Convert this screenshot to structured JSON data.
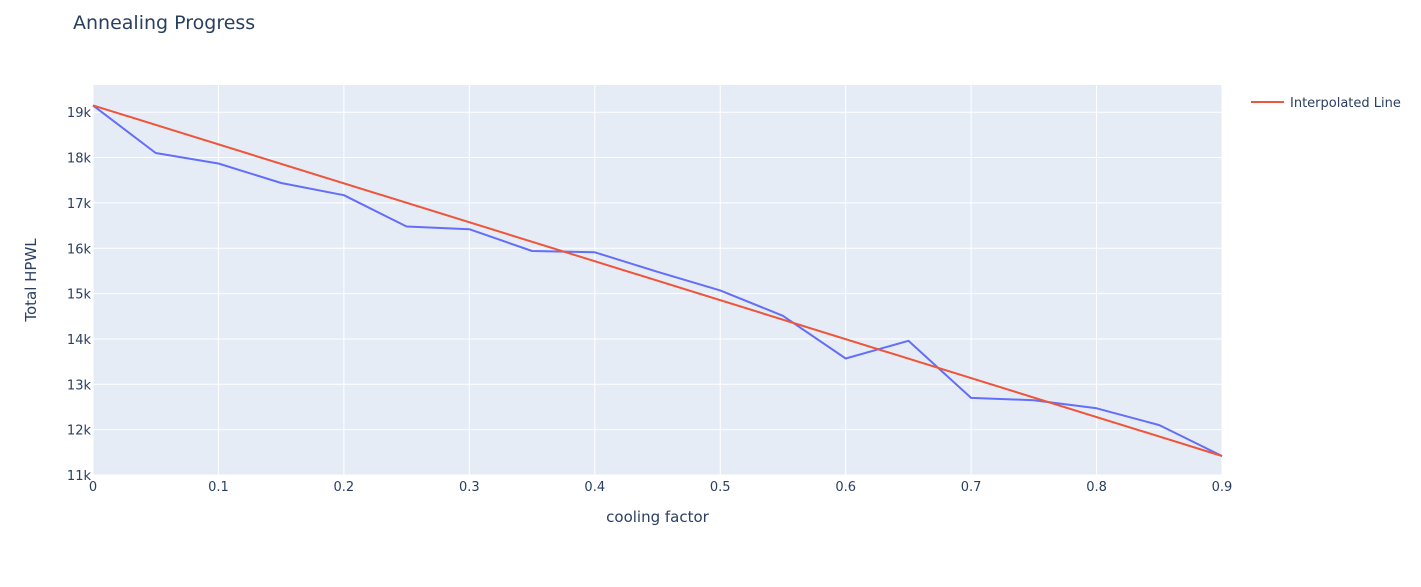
{
  "chart_data": {
    "type": "line",
    "title": "Annealing Progress",
    "xlabel": "cooling factor",
    "ylabel": "Total HPWL",
    "xlim": [
      0,
      0.9
    ],
    "ylim": [
      11000,
      19600
    ],
    "x_ticks": [
      0,
      0.1,
      0.2,
      0.3,
      0.4,
      0.5,
      0.6,
      0.7,
      0.8,
      0.9
    ],
    "x_tick_labels": [
      "0",
      "0.1",
      "0.2",
      "0.3",
      "0.4",
      "0.5",
      "0.6",
      "0.7",
      "0.8",
      "0.9"
    ],
    "y_ticks": [
      11000,
      12000,
      13000,
      14000,
      15000,
      16000,
      17000,
      18000,
      19000
    ],
    "y_tick_labels": [
      "11k",
      "12k",
      "13k",
      "14k",
      "15k",
      "16k",
      "17k",
      "18k",
      "19k"
    ],
    "grid": true,
    "legend_position": "top-right",
    "series": [
      {
        "color": "#636efa",
        "show_in_legend": false,
        "x": [
          0,
          0.05,
          0.1,
          0.15,
          0.2,
          0.25,
          0.3,
          0.35,
          0.4,
          0.45,
          0.5,
          0.55,
          0.6,
          0.65,
          0.7,
          0.75,
          0.8,
          0.85,
          0.9
        ],
        "y": [
          19150,
          18100,
          17870,
          17440,
          17170,
          16480,
          16420,
          15940,
          15910,
          15480,
          15070,
          14510,
          13570,
          13960,
          12700,
          12650,
          12470,
          12100,
          11420
        ]
      },
      {
        "name": "Interpolated Line",
        "color": "#ef553b",
        "show_in_legend": true,
        "x": [
          0,
          0.9
        ],
        "y": [
          19150,
          11420
        ]
      }
    ]
  }
}
